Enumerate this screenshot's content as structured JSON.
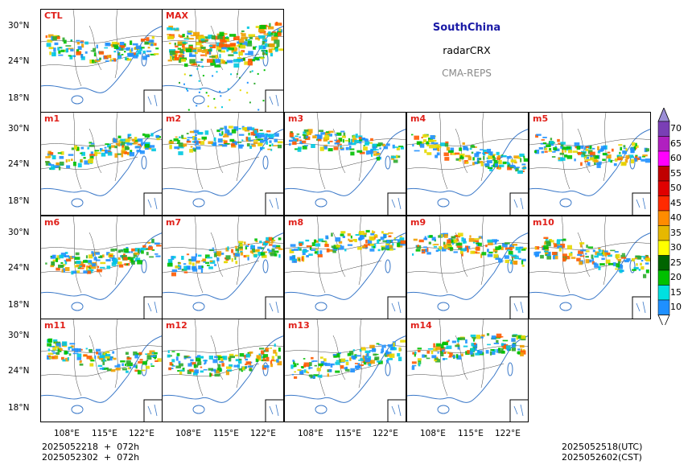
{
  "header": {
    "region": "SouthChina",
    "product": "radarCRX",
    "system": "CMA-REPS"
  },
  "panels": [
    {
      "label": "CTL"
    },
    {
      "label": "MAX"
    },
    {
      "label": "m1"
    },
    {
      "label": "m2"
    },
    {
      "label": "m3"
    },
    {
      "label": "m4"
    },
    {
      "label": "m5"
    },
    {
      "label": "m6"
    },
    {
      "label": "m7"
    },
    {
      "label": "m8"
    },
    {
      "label": "m9"
    },
    {
      "label": "m10"
    },
    {
      "label": "m11"
    },
    {
      "label": "m12"
    },
    {
      "label": "m13"
    },
    {
      "label": "m14"
    }
  ],
  "axes": {
    "lat_ticks": [
      "30°N",
      "24°N",
      "18°N"
    ],
    "lon_ticks": [
      "108°E",
      "115°E",
      "122°E"
    ]
  },
  "colorbar": {
    "levels": [
      "70",
      "65",
      "60",
      "55",
      "50",
      "45",
      "40",
      "35",
      "30",
      "25",
      "20",
      "15",
      "10"
    ],
    "colors": [
      "#7a3fb5",
      "#b020c0",
      "#ff00ff",
      "#c00000",
      "#e00000",
      "#ff2a00",
      "#ff8c00",
      "#e6b800",
      "#ffff00",
      "#006400",
      "#00c000",
      "#00e0e0",
      "#1e90ff"
    ],
    "top_color": "#9b8ed6"
  },
  "footer": {
    "init_line1": "2025052218  +  072h",
    "init_line2": "2025052302  +  072h",
    "valid_utc": "2025052518(UTC)",
    "valid_cst": "2025052602(CST)"
  }
}
